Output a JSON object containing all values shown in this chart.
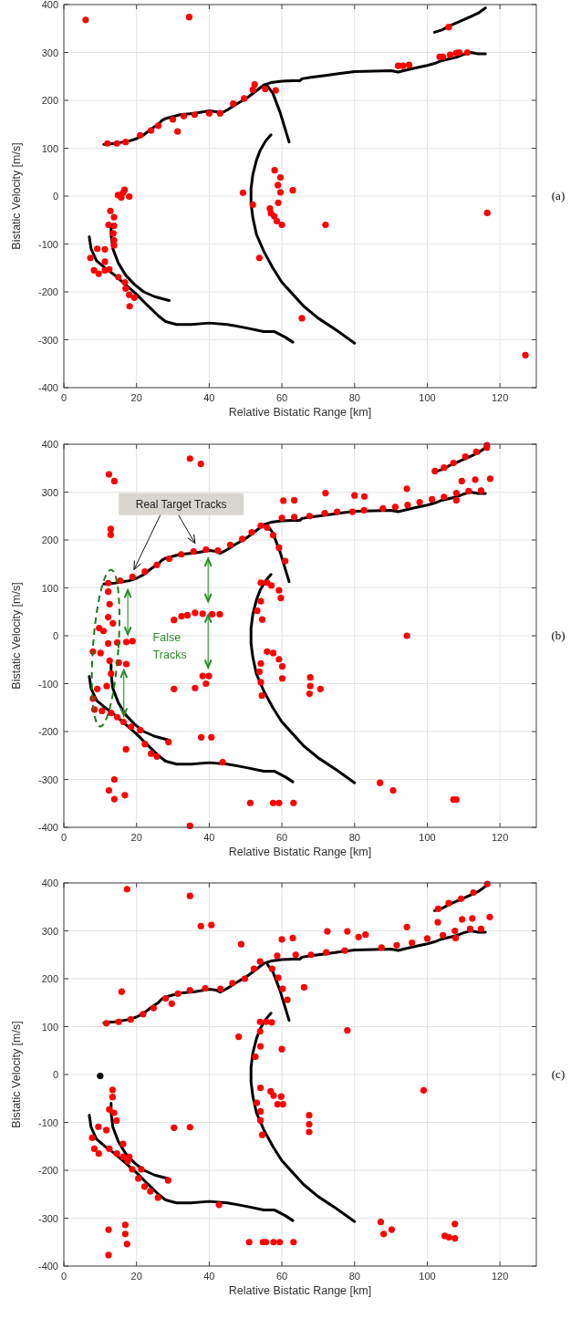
{
  "chart_data": [
    {
      "type": "scatter",
      "xlabel": "Relative Bistatic Range [km]",
      "ylabel": "Bistatic Velocity [m/s]",
      "xlim": [
        0,
        130
      ],
      "ylim": [
        -400,
        400
      ],
      "xticks": [
        0,
        20,
        40,
        60,
        80,
        100,
        120
      ],
      "yticks": [
        -400,
        -300,
        -200,
        -100,
        0,
        100,
        200,
        300,
        400
      ],
      "grid": true,
      "annotations": [
        "(a)"
      ],
      "series": [
        {
          "type": "line",
          "color": "#000000",
          "x": [
            11,
            14,
            18,
            20,
            22,
            24,
            26,
            27,
            28,
            32,
            36,
            40,
            42,
            43,
            45,
            47,
            50,
            53,
            55,
            57,
            60,
            63,
            65,
            65.5,
            68,
            72,
            76,
            80,
            90,
            92,
            94,
            97,
            100,
            102,
            104,
            108,
            110,
            112,
            114,
            116
          ],
          "values": [
            108,
            110,
            115,
            120,
            128,
            140,
            150,
            158,
            162,
            170,
            173,
            178,
            176,
            172,
            180,
            190,
            203,
            220,
            232,
            237,
            240,
            241,
            241,
            245,
            248,
            252,
            256,
            260,
            262,
            259,
            263,
            268,
            273,
            277,
            283,
            290,
            296,
            300,
            297,
            297
          ]
        },
        {
          "type": "line",
          "color": "#000000",
          "x": [
            102,
            104,
            106,
            109,
            112,
            114,
            116
          ],
          "values": [
            342,
            347,
            355,
            365,
            375,
            382,
            393
          ]
        },
        {
          "type": "line",
          "color": "#000000",
          "x": [
            56,
            57.5,
            58.5,
            59.5,
            60.5,
            61.5,
            62
          ],
          "values": [
            230,
            215,
            195,
            175,
            150,
            125,
            113
          ]
        },
        {
          "type": "line",
          "color": "#000000",
          "x": [
            57,
            55.5,
            54,
            53,
            52,
            51.5,
            51.5,
            52,
            53,
            55,
            57.5,
            60,
            63,
            66,
            70,
            75,
            80
          ],
          "values": [
            128,
            115,
            95,
            75,
            45,
            15,
            -15,
            -45,
            -80,
            -115,
            -150,
            -180,
            -205,
            -230,
            -255,
            -280,
            -307
          ]
        },
        {
          "type": "line",
          "color": "#000000",
          "x": [
            13,
            13,
            13.5,
            15,
            17,
            19.5,
            22,
            25,
            29
          ],
          "values": [
            -60,
            -80,
            -110,
            -140,
            -165,
            -185,
            -200,
            -210,
            -218
          ]
        },
        {
          "type": "line",
          "color": "#000000",
          "x": [
            7,
            7.5,
            9,
            11,
            14,
            17,
            20,
            23,
            26,
            28,
            31,
            35,
            40,
            45,
            50,
            55,
            58,
            61,
            63
          ],
          "values": [
            -85,
            -110,
            -135,
            -148,
            -165,
            -185,
            -205,
            -228,
            -250,
            -262,
            -268,
            -268,
            -265,
            -268,
            -275,
            -283,
            -283,
            -295,
            -305
          ]
        },
        {
          "color": "#ff0000",
          "marker": "circle",
          "x": [
            6,
            34.5,
            12,
            14.6,
            17,
            21,
            24,
            26,
            30,
            33,
            36,
            40,
            43,
            46.6,
            49.6,
            52,
            52.5,
            55.4,
            58.3,
            31.3,
            92,
            93.3,
            95,
            103.4,
            104.3,
            106.3,
            108,
            108.8,
            111,
            105.9,
            116.5,
            127,
            72,
            65.5,
            63,
            58,
            59.6,
            58.9,
            59.6,
            59,
            56.7,
            57,
            57.9,
            58.6,
            60,
            49.3,
            52,
            53.8,
            14.9,
            16.3,
            16.7,
            18,
            15.8,
            12.8,
            13.8,
            12.3,
            13.8,
            13.6,
            13.8,
            13.8,
            9.2,
            11.3,
            7.3,
            8.3,
            9.6,
            11.3,
            12.5,
            11.3,
            15,
            16.8,
            17,
            18,
            19.4,
            18.1
          ],
          "values": [
            368,
            374,
            110,
            110,
            113,
            127,
            137,
            147,
            160,
            167,
            170,
            173,
            173,
            193,
            204,
            222,
            233,
            224,
            221,
            135,
            272,
            272,
            274,
            291,
            291,
            295,
            299,
            300,
            300,
            353,
            -35,
            -332,
            -60,
            -255,
            12,
            54,
            39,
            23,
            8,
            -14,
            -26,
            -36,
            -42,
            -52,
            -60,
            7,
            -18,
            -129,
            2,
            7,
            13,
            -1,
            -3,
            -31,
            -44,
            -60,
            -62,
            -78,
            -92,
            -103,
            -110,
            -111,
            -129,
            -155,
            -162,
            -155,
            -153,
            -137,
            -169,
            -180,
            -193,
            -206,
            -212,
            -230
          ]
        }
      ]
    },
    {
      "type": "scatter",
      "xlabel": "Relative Bistatic Range [km]",
      "ylabel": "Bistatic Velocity [m/s]",
      "xlim": [
        0,
        130
      ],
      "ylim": [
        -400,
        400
      ],
      "xticks": [
        0,
        20,
        40,
        60,
        80,
        100,
        120
      ],
      "yticks": [
        -400,
        -300,
        -200,
        -100,
        0,
        100,
        200,
        300,
        400
      ],
      "grid": true,
      "annotations": [
        "(b)",
        {
          "text": "Real Target Tracks",
          "x": 19.3,
          "y": 138
        },
        "False Tracks"
      ],
      "series": [
        {
          "type": "line",
          "color": "#000000",
          "x": [
            11,
            14,
            18,
            20,
            22,
            24,
            26,
            27,
            28,
            32,
            36,
            40,
            42,
            43,
            45,
            47,
            50,
            53,
            55,
            57,
            60,
            63,
            65,
            65.5,
            68,
            72,
            76,
            80,
            90,
            92,
            94,
            97,
            100,
            102,
            104,
            108,
            110,
            112,
            114,
            116
          ],
          "values": [
            108,
            110,
            115,
            120,
            128,
            140,
            150,
            158,
            162,
            170,
            173,
            178,
            176,
            172,
            180,
            190,
            203,
            220,
            232,
            237,
            240,
            241,
            241,
            245,
            248,
            252,
            256,
            260,
            262,
            259,
            263,
            268,
            273,
            277,
            283,
            290,
            296,
            300,
            297,
            297
          ]
        },
        {
          "type": "line",
          "color": "#000000",
          "x": [
            102,
            104,
            106,
            109,
            112,
            114,
            116
          ],
          "values": [
            342,
            347,
            355,
            365,
            375,
            382,
            393
          ]
        },
        {
          "type": "line",
          "color": "#000000",
          "x": [
            56,
            57.5,
            58.5,
            59.5,
            60.5,
            61.5,
            62
          ],
          "values": [
            230,
            215,
            195,
            175,
            150,
            125,
            113
          ]
        },
        {
          "type": "line",
          "color": "#000000",
          "x": [
            57,
            55.5,
            54,
            53,
            52,
            51.5,
            51.5,
            52,
            53,
            55,
            57.5,
            60,
            63,
            66,
            70,
            75,
            80
          ],
          "values": [
            128,
            115,
            95,
            75,
            45,
            15,
            -15,
            -45,
            -80,
            -115,
            -150,
            -180,
            -205,
            -230,
            -255,
            -280,
            -307
          ]
        },
        {
          "type": "line",
          "color": "#000000",
          "x": [
            13,
            13,
            13.5,
            15,
            17,
            19.5,
            22,
            25,
            29
          ],
          "values": [
            -60,
            -80,
            -110,
            -140,
            -165,
            -185,
            -200,
            -210,
            -218
          ]
        },
        {
          "type": "line",
          "color": "#000000",
          "x": [
            7,
            7.5,
            9,
            11,
            14,
            17,
            20,
            23,
            26,
            28,
            31,
            35,
            40,
            45,
            50,
            55,
            58,
            61,
            63
          ],
          "values": [
            -85,
            -110,
            -135,
            -148,
            -165,
            -185,
            -205,
            -228,
            -250,
            -262,
            -268,
            -268,
            -265,
            -268,
            -275,
            -283,
            -283,
            -295,
            -305
          ]
        },
        {
          "color": "#ff0000",
          "marker": "circle",
          "x": [
            34.7,
            37.7,
            12.4,
            13.9,
            12.9,
            12.9,
            12.2,
            15.5,
            18.9,
            22.3,
            25.6,
            29,
            32.3,
            35.7,
            39.1,
            42.4,
            45.8,
            49.1,
            51.7,
            54.2,
            55.9,
            57.6,
            59.2,
            60.9,
            30.3,
            32.4,
            34,
            36.1,
            38.2,
            40.8,
            42.9,
            38.2,
            39.9,
            39.1,
            30.3,
            36.1,
            37.8,
            40.6,
            43.7,
            34.7,
            28.8,
            17.1,
            12.4,
            13.9,
            13.9,
            16.8,
            51.3,
            57.6,
            59.2,
            63.2,
            54.2,
            55.9,
            57.1,
            59.2,
            59.7,
            54.2,
            54.6,
            53.2,
            55.9,
            57.6,
            59.2,
            60.1,
            60.1,
            54.2,
            53.8,
            54.2,
            54.5,
            67.8,
            67.8,
            67.6,
            70.6,
            12.2,
            12.6,
            12.2,
            13.5,
            9.7,
            10.9,
            8,
            10.1,
            12.2,
            14.7,
            17.2,
            18.9,
            12.6,
            13,
            15.1,
            17.2,
            11.8,
            9.2,
            8,
            8.4,
            10.5,
            13,
            14.7,
            16.4,
            18.5,
            21,
            22.3,
            24,
            25.6,
            102.1,
            104.6,
            107.2,
            110.5,
            113.5,
            116.4,
            116.4,
            109.5,
            113.2,
            117.3,
            108,
            94.4,
            72,
            80,
            82.7,
            60.4,
            63.4,
            60,
            63.4,
            67.6,
            71.8,
            75.2,
            79.4,
            82.6,
            87.8,
            91.2,
            94.6,
            97.9,
            101.3,
            104.6,
            108,
            111.4,
            114.8,
            94.4,
            87,
            90.6,
            107.2,
            108
          ],
          "values": [
            370,
            359,
            337,
            323,
            223,
            211,
            110,
            115,
            123,
            134,
            148,
            161,
            170,
            176,
            180,
            178,
            190,
            202,
            216,
            230,
            226,
            210,
            184,
            156,
            33,
            41,
            43,
            48,
            46,
            45,
            45,
            -84,
            -84,
            -100,
            -111,
            -109,
            -212,
            -212,
            -264,
            -397,
            -222,
            -237,
            -323,
            -300,
            -341,
            -333,
            -349,
            -349,
            -349,
            -349,
            111,
            111,
            105,
            95,
            79,
            72,
            34,
            52,
            -33,
            -36,
            -49,
            -64,
            -89,
            -58,
            -75,
            -97,
            -125,
            -87,
            -105,
            -121,
            -111,
            92,
            66,
            39,
            26,
            16,
            10,
            -33,
            -36,
            -16,
            -14,
            -13,
            -11,
            -52,
            -79,
            -56,
            -59,
            -105,
            -111,
            -131,
            -154,
            -157,
            -161,
            -170,
            -180,
            -190,
            -197,
            -226,
            -246,
            -252,
            344,
            351,
            361,
            374,
            384,
            398,
            393,
            323,
            326,
            328,
            283,
            307,
            298,
            293,
            291,
            282,
            283,
            246,
            248,
            250,
            256,
            259,
            259,
            262,
            266,
            269,
            273,
            279,
            285,
            290,
            298,
            302,
            303,
            0,
            -307,
            -323,
            -342,
            -342
          ]
        }
      ]
    },
    {
      "type": "scatter",
      "xlabel": "Relative Bistatic Range [km]",
      "ylabel": "Bistatic Velocity [m/s]",
      "xlim": [
        0,
        130
      ],
      "ylim": [
        -400,
        400
      ],
      "xticks": [
        0,
        20,
        40,
        60,
        80,
        100,
        120
      ],
      "yticks": [
        -400,
        -300,
        -200,
        -100,
        0,
        100,
        200,
        300,
        400
      ],
      "grid": true,
      "annotations": [
        "(c)"
      ],
      "series": [
        {
          "type": "line",
          "color": "#000000",
          "x": [
            11,
            14,
            18,
            20,
            22,
            24,
            26,
            27,
            28,
            32,
            36,
            40,
            42,
            43,
            45,
            47,
            50,
            53,
            55,
            57,
            60,
            63,
            65,
            65.5,
            68,
            72,
            76,
            80,
            90,
            92,
            94,
            97,
            100,
            102,
            104,
            108,
            110,
            112,
            114,
            116
          ],
          "values": [
            108,
            110,
            115,
            120,
            128,
            140,
            150,
            158,
            162,
            170,
            173,
            178,
            176,
            172,
            180,
            190,
            203,
            220,
            232,
            237,
            240,
            241,
            241,
            245,
            248,
            252,
            256,
            260,
            262,
            259,
            263,
            268,
            273,
            277,
            283,
            290,
            296,
            300,
            297,
            297
          ]
        },
        {
          "type": "line",
          "color": "#000000",
          "x": [
            102,
            104,
            106,
            109,
            112,
            114,
            116
          ],
          "values": [
            342,
            347,
            355,
            365,
            375,
            382,
            393
          ]
        },
        {
          "type": "line",
          "color": "#000000",
          "x": [
            56,
            57.5,
            58.5,
            59.5,
            60.5,
            61.5,
            62
          ],
          "values": [
            230,
            215,
            195,
            175,
            150,
            125,
            113
          ]
        },
        {
          "type": "line",
          "color": "#000000",
          "x": [
            57,
            55.5,
            54,
            53,
            52,
            51.5,
            51.5,
            52,
            53,
            55,
            57.5,
            60,
            63,
            66,
            70,
            75,
            80
          ],
          "values": [
            128,
            115,
            95,
            75,
            45,
            15,
            -15,
            -45,
            -80,
            -115,
            -150,
            -180,
            -205,
            -230,
            -255,
            -280,
            -307
          ]
        },
        {
          "type": "line",
          "color": "#000000",
          "x": [
            13,
            13,
            13.5,
            15,
            17,
            19.5,
            22,
            25,
            29
          ],
          "values": [
            -60,
            -80,
            -110,
            -140,
            -165,
            -185,
            -200,
            -210,
            -218
          ]
        },
        {
          "type": "line",
          "color": "#000000",
          "x": [
            7,
            7.5,
            9,
            11,
            14,
            17,
            20,
            23,
            26,
            28,
            31,
            35,
            40,
            45,
            50,
            55,
            58,
            61,
            63
          ],
          "values": [
            -85,
            -110,
            -135,
            -148,
            -165,
            -185,
            -205,
            -228,
            -250,
            -262,
            -268,
            -268,
            -265,
            -268,
            -275,
            -283,
            -283,
            -295,
            -305
          ]
        },
        {
          "color": "#000000",
          "marker": "circle",
          "x": [
            10
          ],
          "values": [
            -3
          ]
        },
        {
          "color": "#ff0000",
          "marker": "circle",
          "x": [
            17.4,
            34.7,
            37.7,
            40.6,
            48.8,
            15.9,
            66.1,
            48.1,
            60,
            11.7,
            15.1,
            18.4,
            21.8,
            24.7,
            28,
            29.7,
            31.4,
            34.7,
            38.9,
            43.1,
            46.4,
            49.8,
            52.3,
            54,
            57.3,
            59,
            60.2,
            61.5,
            54,
            55.7,
            57.2,
            54,
            54.1,
            52.7,
            54.1,
            56.9,
            57.7,
            58.8,
            60.3,
            59.8,
            53.1,
            54.1,
            54.1,
            54.6,
            67.5,
            67.5,
            67.5,
            30.3,
            34.7,
            42.7,
            28.7,
            12.3,
            16.9,
            16.9,
            17.4,
            12.3,
            51,
            54.8,
            55.6,
            57.7,
            59.4,
            63.2,
            13.4,
            13.4,
            12.5,
            13.8,
            14.5,
            9.5,
            11.7,
            7.8,
            8.4,
            9.6,
            12.5,
            14.6,
            16.3,
            17.6,
            18.8,
            21.3,
            20.5,
            22.2,
            23.8,
            25.9,
            16.3,
            18,
            103,
            105.9,
            109.3,
            112.7,
            116.5,
            102.9,
            109.6,
            112.4,
            117.2,
            107.8,
            94.4,
            72.5,
            78,
            81.1,
            83,
            60,
            63,
            58.7,
            63.8,
            68,
            72.2,
            77.3,
            87.4,
            91.6,
            95.8,
            100,
            104.3,
            107.6,
            111.8,
            114.8,
            78,
            99,
            87.2,
            88,
            90.2,
            107.6,
            104.8,
            106,
            107.6
          ],
          "values": [
            387,
            373,
            310,
            312,
            272,
            173,
            182,
            79,
            53,
            107,
            110,
            115,
            126,
            139,
            159,
            148,
            169,
            176,
            180,
            179,
            191,
            200,
            221,
            236,
            221,
            202,
            179,
            156,
            110,
            110,
            109,
            90,
            59,
            37,
            -28,
            -35,
            -44,
            -62,
            -62,
            -46,
            -59,
            -77,
            -96,
            -126,
            -85,
            -104,
            -120,
            -111,
            -110,
            -272,
            -221,
            -324,
            -314,
            -333,
            -354,
            -377,
            -350,
            -350,
            -350,
            -350,
            -350,
            -350,
            -32,
            -47,
            -73,
            -80,
            -96,
            -109,
            -116,
            -132,
            -155,
            -165,
            -155,
            -165,
            -172,
            -181,
            -198,
            -198,
            -217,
            -234,
            -244,
            -257,
            -145,
            -172,
            346,
            358,
            367,
            380,
            398,
            318,
            324,
            326,
            329,
            285,
            308,
            299,
            299,
            287,
            292,
            282,
            285,
            248,
            250,
            250,
            255,
            259,
            265,
            270,
            275,
            284,
            291,
            300,
            304,
            304,
            92,
            -33,
            -308,
            -333,
            -324,
            -312,
            -337,
            -340,
            -342
          ]
        }
      ]
    }
  ]
}
